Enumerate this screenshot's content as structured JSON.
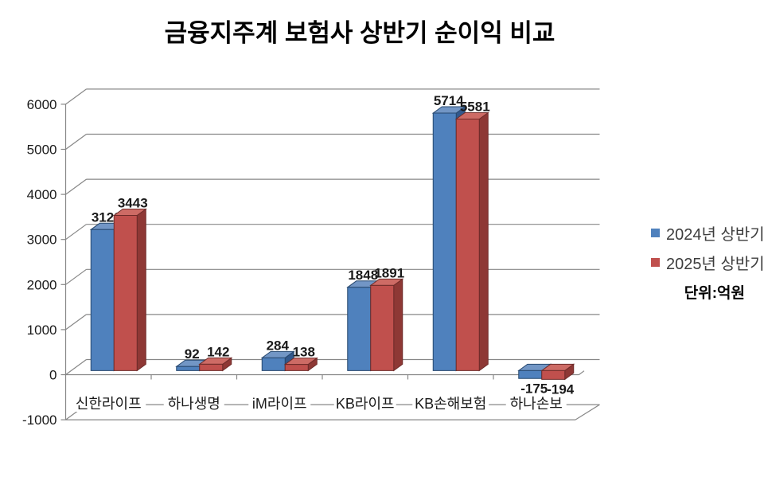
{
  "title": "금융지주계 보험사 상반기 순이익 비교",
  "unit_note": "단위:억원",
  "chart_data": {
    "type": "bar",
    "style": "3d-clustered-column",
    "title": "금융지주계 보험사 상반기 순이익 비교",
    "categories": [
      "신한라이프",
      "하나생명",
      "iM라이프",
      "KB라이프",
      "KB손해보험",
      "하나손보"
    ],
    "series": [
      {
        "name": "2024년 상반기",
        "values": [
          3129,
          92,
          284,
          1848,
          5714,
          -175
        ],
        "color": "#4f81bd",
        "color_top": "#7296c5",
        "color_side": "#31588c",
        "color_stroke": "#27486f"
      },
      {
        "name": "2025년 상반기",
        "values": [
          3443,
          142,
          138,
          1891,
          5581,
          -194
        ],
        "color": "#c0504d",
        "color_top": "#cd6b65",
        "color_side": "#8e3835",
        "color_stroke": "#6e2b29"
      }
    ],
    "xlabel": "",
    "ylabel": "",
    "ylim": [
      -1000,
      6000
    ],
    "ytick_step": 1000,
    "grid": true,
    "legend_position": "right",
    "grid_color": "#878787",
    "text_color": "#1a1a1a",
    "unit_note": "단위:억원"
  }
}
